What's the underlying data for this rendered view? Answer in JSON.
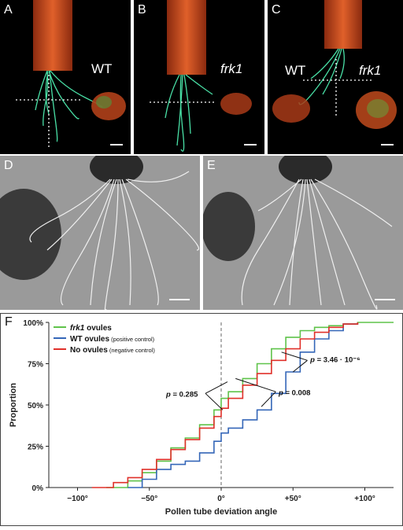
{
  "panels": {
    "A": {
      "label": "A",
      "text": "WT"
    },
    "B": {
      "label": "B",
      "text": "frk1"
    },
    "C": {
      "label": "C",
      "text_left": "WT",
      "text_right": "frk1"
    },
    "D": {
      "label": "D"
    },
    "E": {
      "label": "E"
    }
  },
  "colors": {
    "style_orange": "#d04a1c",
    "pollen_green": "#49e0a6",
    "frk1_series": "#5fc34a",
    "wt_series": "#3466b8",
    "no_ovules_series": "#e0302a"
  },
  "chart_data": {
    "label": "F",
    "type": "line",
    "xlabel": "Pollen tube deviation angle",
    "ylabel": "Proportion",
    "xlim": [
      -120,
      120
    ],
    "ylim": [
      0,
      100
    ],
    "x_ticks": [
      -100,
      -50,
      0,
      50,
      100
    ],
    "x_tick_labels": [
      "−100°",
      "−50°",
      "0°",
      "+50°",
      "+100°"
    ],
    "y_ticks": [
      0,
      25,
      50,
      75,
      100
    ],
    "y_tick_labels": [
      "0%",
      "25%",
      "50%",
      "75%",
      "100%"
    ],
    "reference_line_x": 0,
    "legend_position": "top-left",
    "series": [
      {
        "name": "frk1 ovules",
        "name_italic": "frk1",
        "name_rest": " ovules",
        "note": "",
        "color": "#5fc34a",
        "x": [
          -80,
          -65,
          -55,
          -45,
          -35,
          -25,
          -15,
          -5,
          0,
          5,
          15,
          25,
          35,
          45,
          55,
          65,
          75,
          85,
          95,
          120
        ],
        "y": [
          0,
          4,
          9,
          16,
          24,
          30,
          38,
          47,
          54,
          58,
          66,
          75,
          84,
          91,
          95,
          97,
          98,
          99,
          100,
          100
        ]
      },
      {
        "name": "WT ovules",
        "name_italic": "",
        "name_rest": "WT ovules",
        "note": "(positive control)",
        "color": "#3466b8",
        "x": [
          -65,
          -55,
          -45,
          -35,
          -25,
          -15,
          -5,
          0,
          5,
          15,
          25,
          35,
          45,
          55,
          65,
          75,
          85,
          95
        ],
        "y": [
          0,
          5,
          11,
          14,
          16,
          21,
          28,
          33,
          36,
          41,
          47,
          57,
          70,
          82,
          90,
          95,
          99,
          100
        ]
      },
      {
        "name": "No ovules",
        "name_italic": "",
        "name_rest": "No ovules",
        "note": "(negative control)",
        "color": "#e0302a",
        "x": [
          -90,
          -75,
          -65,
          -55,
          -45,
          -35,
          -25,
          -15,
          -5,
          0,
          5,
          15,
          25,
          35,
          45,
          55,
          65,
          75,
          85,
          95
        ],
        "y": [
          0,
          3,
          6,
          11,
          17,
          23,
          29,
          36,
          43,
          48,
          54,
          62,
          69,
          77,
          84,
          90,
          94,
          97,
          99,
          100
        ]
      }
    ],
    "annotations": [
      {
        "text": "p = 0.285",
        "p_symbol": "p",
        "rest": " = 0.285"
      },
      {
        "text": "p = 0.008",
        "p_symbol": "p",
        "rest": " = 0.008"
      },
      {
        "text": "p = 3.46 · 10⁻⁶",
        "p_symbol": "p",
        "rest": " = 3.46 · 10⁻⁶"
      }
    ]
  }
}
